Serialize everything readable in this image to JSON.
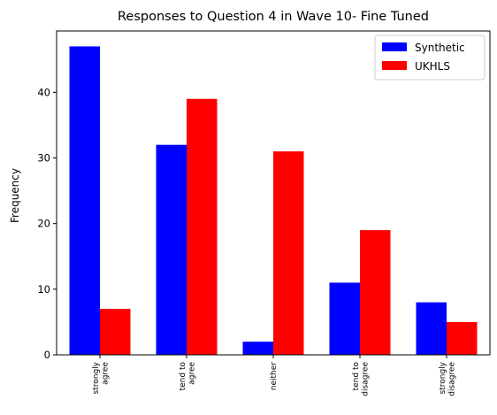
{
  "chart_data": {
    "type": "bar",
    "title": "Responses to Question 4 in Wave 10- Fine Tuned",
    "xlabel": "",
    "ylabel": "Frequency",
    "ylim": [
      0,
      49.35
    ],
    "yticks": [
      0,
      10,
      20,
      30,
      40
    ],
    "categories": [
      [
        "strongly",
        "agree"
      ],
      [
        "tend to",
        "agree"
      ],
      [
        "neither"
      ],
      [
        "tend to",
        "disagree"
      ],
      [
        "strongly",
        "disagree"
      ]
    ],
    "series": [
      {
        "name": "Synthetic",
        "color": "#0000ff",
        "values": [
          47,
          32,
          2,
          11,
          8
        ]
      },
      {
        "name": "UKHLS",
        "color": "#ff0000",
        "values": [
          7,
          39,
          31,
          19,
          5
        ]
      }
    ],
    "legend_position": "top-right",
    "grid": false
  }
}
